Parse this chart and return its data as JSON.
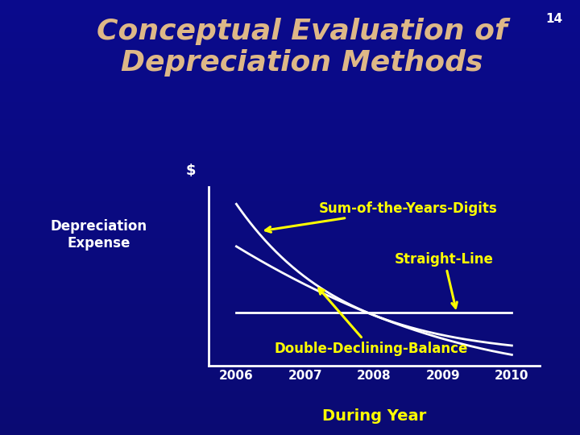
{
  "title_line1": "Conceptual Evaluation of",
  "title_line2": "Depreciation Methods",
  "title_color": "#DEB887",
  "title_fontsize": 26,
  "title_style": "italic",
  "title_weight": "bold",
  "bg_color": "#1010cc",
  "slide_number": "14",
  "slide_number_color": "#ffffff",
  "ylabel_dollar": "$",
  "ylabel_text": "Depreciation\nExpense",
  "ylabel_color": "#ffffff",
  "xlabel_text": "During Year",
  "xlabel_color": "#ffff00",
  "xtick_labels": [
    "2006",
    "2007",
    "2008",
    "2009",
    "2010"
  ],
  "xtick_color": "#ffffff",
  "line_color": "#ffffff",
  "years": [
    2006,
    2007,
    2008,
    2009,
    2010
  ],
  "sum_digits": [
    1.8,
    1.1,
    0.65,
    0.35,
    0.1
  ],
  "straight_line_val": 0.52,
  "double_declining": [
    1.3,
    0.85,
    0.5,
    0.2,
    0.03
  ],
  "label_soyd": "Sum-of-the-Years-Digits",
  "label_sl": "Straight-Line",
  "label_ddb": "Double-Declining-Balance",
  "label_color": "#ffff00",
  "label_fontsize": 12,
  "arrow_color": "#ffff00",
  "axis_color": "#ffffff",
  "xlim_left": 2005.6,
  "xlim_right": 2010.4,
  "ylim_bottom": -0.1,
  "ylim_top": 2.0
}
